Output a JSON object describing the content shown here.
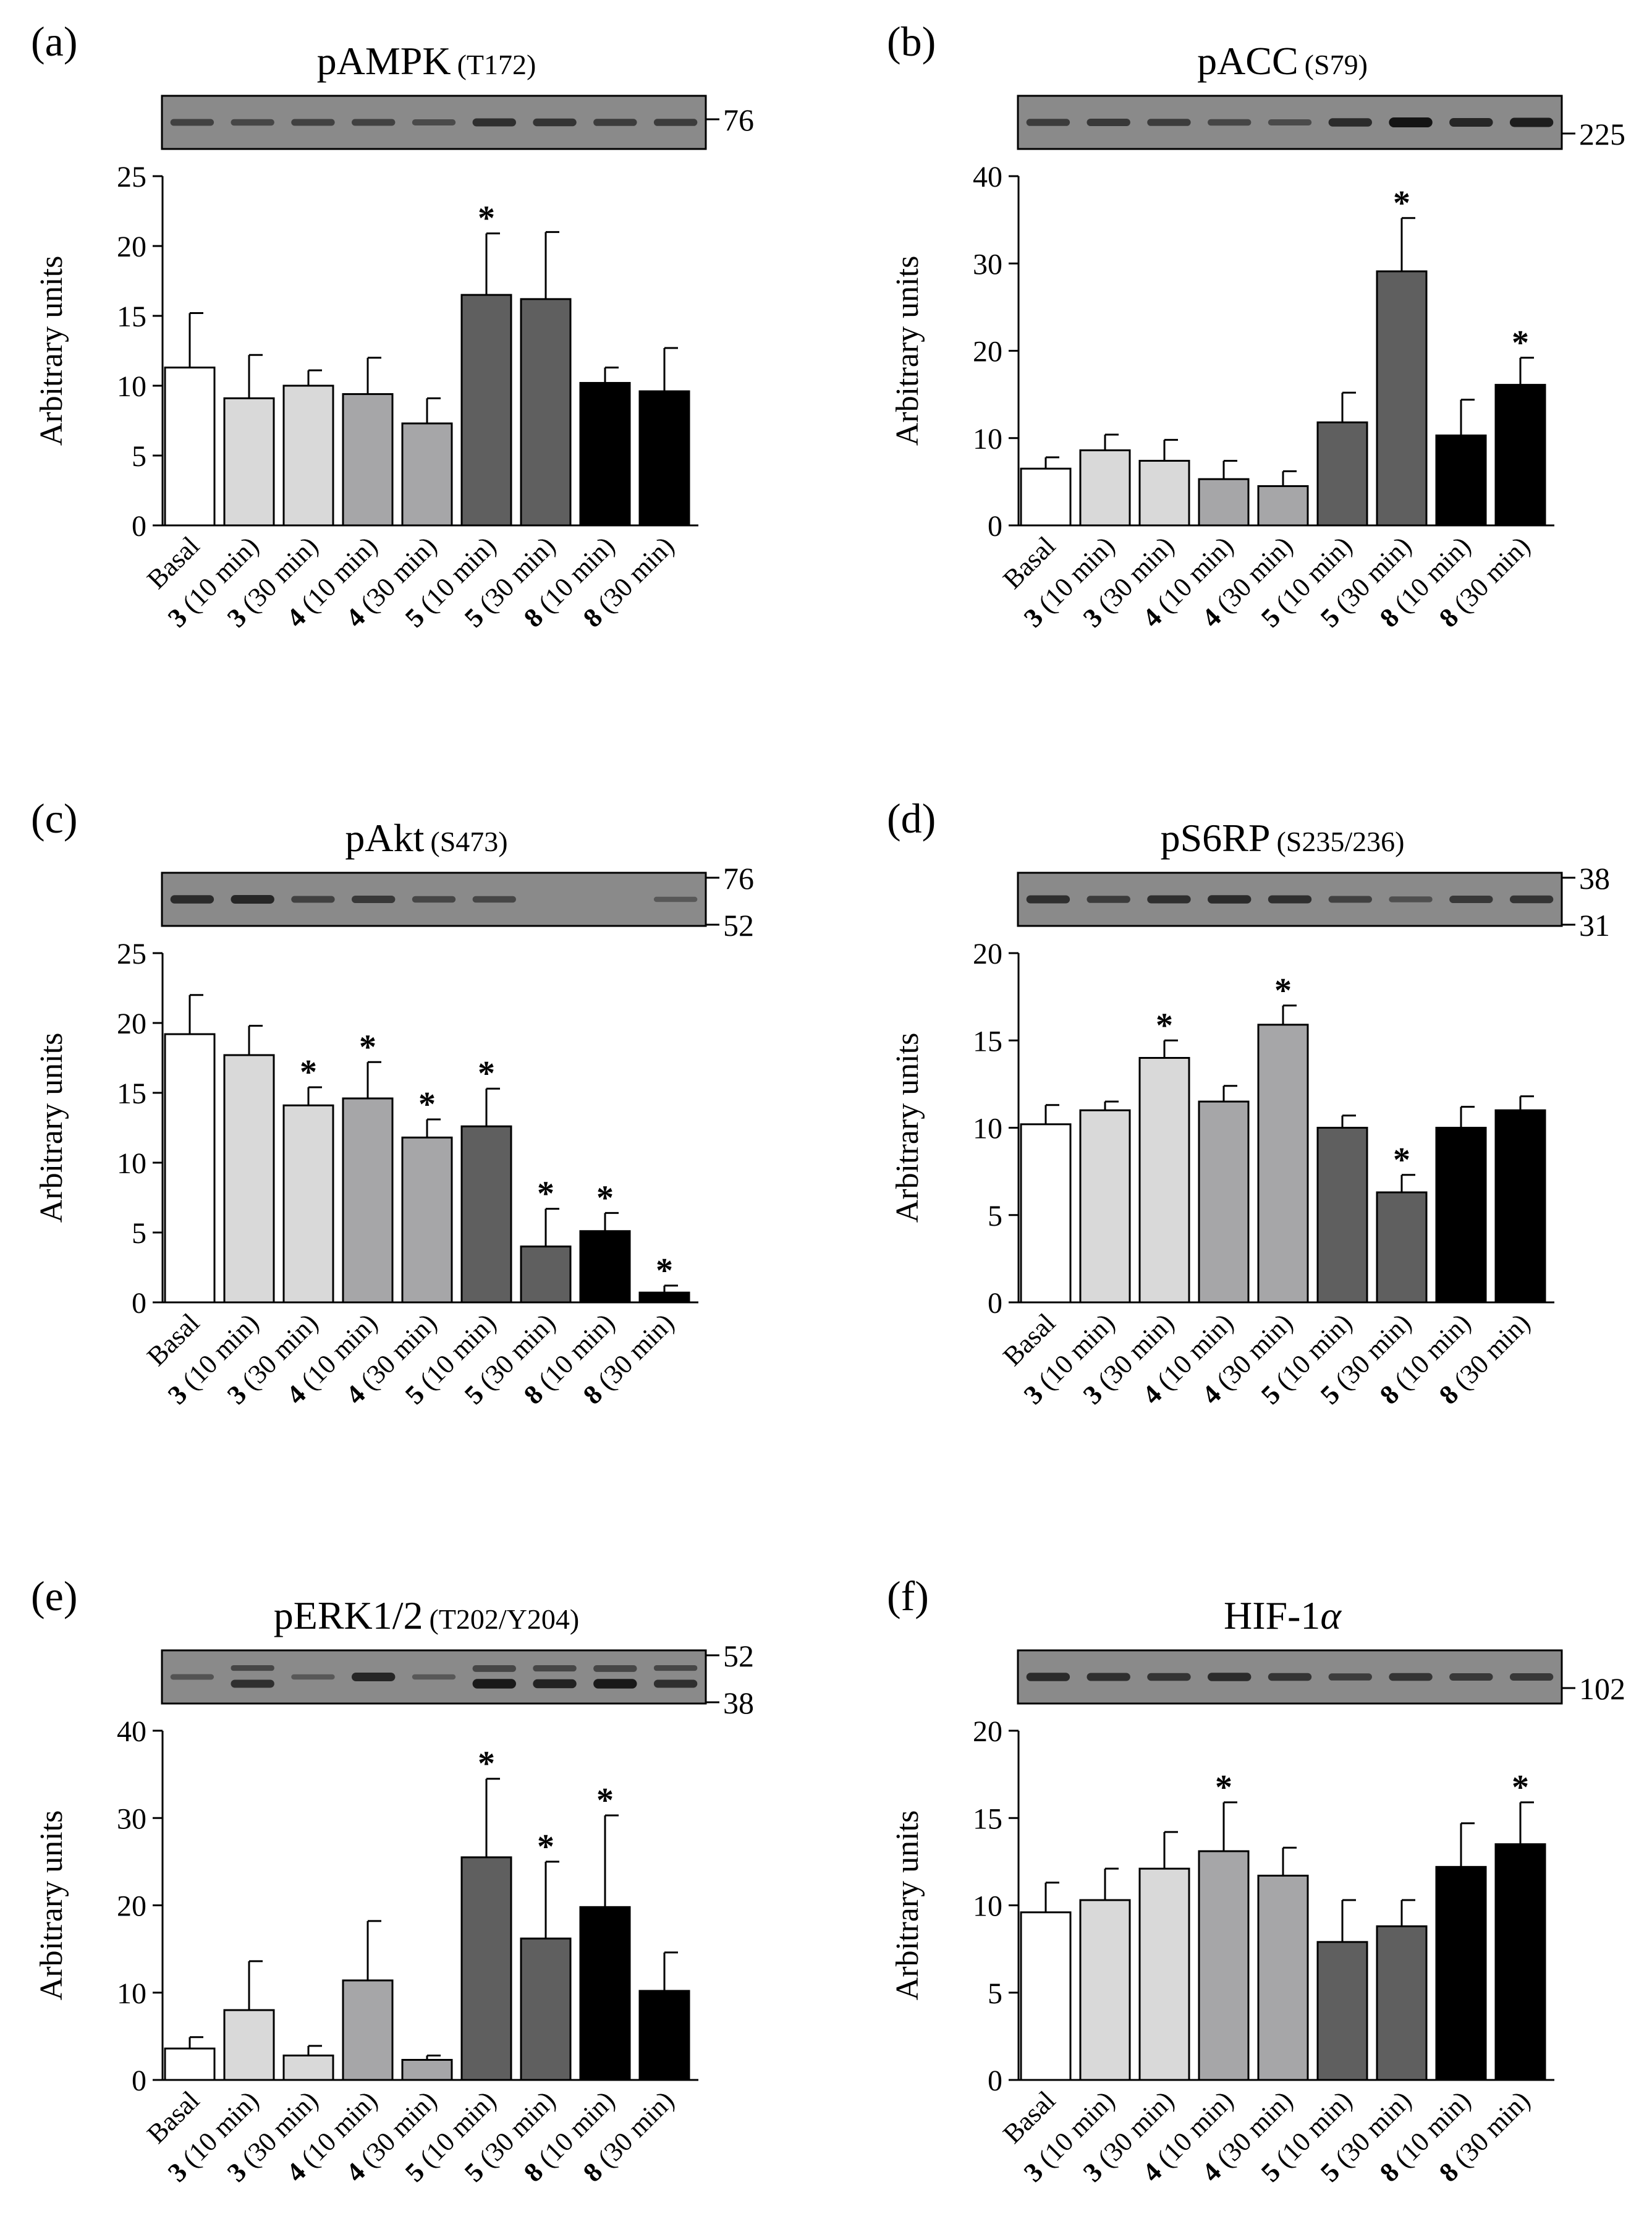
{
  "colors": {
    "basal": "#ffffff",
    "cmp3": "#d9d9d9",
    "cmp4": "#a6a6a8",
    "cmp5": "#5f5f5f",
    "cmp8": "#000000",
    "blot_bg": "#8a8a8a",
    "band": "#1e1e1e"
  },
  "chart_data": [
    {
      "type": "bar",
      "panel": "(a)",
      "title": "pAMPK",
      "title_site": "(T172)",
      "ylabel": "Arbitrary units",
      "ylim": [
        0,
        25
      ],
      "yticks": [
        0,
        5,
        10,
        15,
        20,
        25
      ],
      "categories": [
        {
          "num": "",
          "label": "Basal"
        },
        {
          "num": "3",
          "label": " (10 min)"
        },
        {
          "num": "3",
          "label": " (30 min)"
        },
        {
          "num": "4",
          "label": " (10 min)"
        },
        {
          "num": "4",
          "label": " (30 min)"
        },
        {
          "num": "5",
          "label": " (10 min)"
        },
        {
          "num": "5",
          "label": " (30 min)"
        },
        {
          "num": "8",
          "label": " (10 min)"
        },
        {
          "num": "8",
          "label": " (30 min)"
        }
      ],
      "values": [
        11.3,
        9.1,
        10.0,
        9.4,
        7.3,
        16.5,
        16.2,
        10.2,
        9.6
      ],
      "errors": [
        3.9,
        3.1,
        1.1,
        2.6,
        1.8,
        4.4,
        4.8,
        1.1,
        3.1
      ],
      "significant": [
        false,
        false,
        false,
        false,
        false,
        true,
        false,
        false,
        false
      ],
      "groups": [
        "basal",
        "cmp3",
        "cmp3",
        "cmp4",
        "cmp4",
        "cmp5",
        "cmp5",
        "cmp8",
        "cmp8"
      ],
      "blot": {
        "markers": [
          "76"
        ],
        "bands": [
          0.5,
          0.45,
          0.5,
          0.5,
          0.4,
          0.7,
          0.65,
          0.55,
          0.55
        ],
        "double": [
          false,
          false,
          false,
          false,
          false,
          false,
          false,
          false,
          false
        ]
      }
    },
    {
      "type": "bar",
      "panel": "(b)",
      "title": "pACC",
      "title_site": "(S79)",
      "ylabel": "Arbitrary units",
      "ylim": [
        0,
        40
      ],
      "yticks": [
        0,
        10,
        20,
        30,
        40
      ],
      "categories": [
        {
          "num": "",
          "label": "Basal"
        },
        {
          "num": "3",
          "label": " (10 min)"
        },
        {
          "num": "3",
          "label": " (30 min)"
        },
        {
          "num": "4",
          "label": " (10 min)"
        },
        {
          "num": "4",
          "label": " (30 min)"
        },
        {
          "num": "5",
          "label": " (10 min)"
        },
        {
          "num": "5",
          "label": " (30 min)"
        },
        {
          "num": "8",
          "label": " (10 min)"
        },
        {
          "num": "8",
          "label": " (30 min)"
        }
      ],
      "values": [
        6.5,
        8.6,
        7.4,
        5.3,
        4.5,
        11.8,
        29.1,
        10.3,
        16.1
      ],
      "errors": [
        1.3,
        1.8,
        2.4,
        2.1,
        1.7,
        3.4,
        6.1,
        4.1,
        3.1
      ],
      "significant": [
        false,
        false,
        false,
        false,
        false,
        false,
        true,
        false,
        true
      ],
      "groups": [
        "basal",
        "cmp3",
        "cmp3",
        "cmp4",
        "cmp4",
        "cmp5",
        "cmp5",
        "cmp8",
        "cmp8"
      ],
      "blot": {
        "markers": [
          "225"
        ],
        "bands": [
          0.55,
          0.6,
          0.55,
          0.45,
          0.4,
          0.75,
          1.0,
          0.8,
          0.9
        ],
        "double": [
          false,
          false,
          false,
          false,
          false,
          false,
          false,
          false,
          false
        ]
      }
    },
    {
      "type": "bar",
      "panel": "(c)",
      "title": "pAkt",
      "title_site": "(S473)",
      "ylabel": "Arbitrary units",
      "ylim": [
        0,
        25
      ],
      "yticks": [
        0,
        5,
        10,
        15,
        20,
        25
      ],
      "categories": [
        {
          "num": "",
          "label": "Basal"
        },
        {
          "num": "3",
          "label": " (10 min)"
        },
        {
          "num": "3",
          "label": " (30 min)"
        },
        {
          "num": "4",
          "label": " (10 min)"
        },
        {
          "num": "4",
          "label": " (30 min)"
        },
        {
          "num": "5",
          "label": " (10 min)"
        },
        {
          "num": "5",
          "label": " (30 min)"
        },
        {
          "num": "8",
          "label": " (10 min)"
        },
        {
          "num": "8",
          "label": " (30 min)"
        }
      ],
      "values": [
        19.2,
        17.7,
        14.1,
        14.6,
        11.8,
        12.6,
        4.0,
        5.1,
        0.7
      ],
      "errors": [
        2.8,
        2.1,
        1.3,
        2.6,
        1.3,
        2.7,
        2.7,
        1.3,
        0.5
      ],
      "significant": [
        false,
        false,
        true,
        true,
        true,
        true,
        true,
        true,
        true
      ],
      "groups": [
        "basal",
        "cmp3",
        "cmp3",
        "cmp4",
        "cmp4",
        "cmp5",
        "cmp5",
        "cmp8",
        "cmp8"
      ],
      "blot": {
        "markers": [
          "76",
          "52"
        ],
        "bands": [
          0.75,
          0.8,
          0.5,
          0.6,
          0.45,
          0.45,
          0.0,
          0.0,
          0.25
        ],
        "double": [
          false,
          false,
          false,
          false,
          false,
          false,
          false,
          false,
          false
        ]
      }
    },
    {
      "type": "bar",
      "panel": "(d)",
      "title": "pS6RP",
      "title_site": "(S235/236)",
      "ylabel": "Arbitrary units",
      "ylim": [
        0,
        20
      ],
      "yticks": [
        0,
        5,
        10,
        15,
        20
      ],
      "categories": [
        {
          "num": "",
          "label": "Basal"
        },
        {
          "num": "3",
          "label": " (10 min)"
        },
        {
          "num": "3",
          "label": " (30 min)"
        },
        {
          "num": "4",
          "label": " (10 min)"
        },
        {
          "num": "4",
          "label": " (30 min)"
        },
        {
          "num": "5",
          "label": " (10 min)"
        },
        {
          "num": "5",
          "label": " (30 min)"
        },
        {
          "num": "8",
          "label": " (10 min)"
        },
        {
          "num": "8",
          "label": " (30 min)"
        }
      ],
      "values": [
        10.2,
        11.0,
        14.0,
        11.5,
        15.9,
        10.0,
        6.3,
        10.0,
        11.0
      ],
      "errors": [
        1.1,
        0.5,
        1.0,
        0.9,
        1.1,
        0.7,
        1.0,
        1.2,
        0.8
      ],
      "significant": [
        false,
        false,
        true,
        false,
        true,
        false,
        true,
        false,
        false
      ],
      "groups": [
        "basal",
        "cmp3",
        "cmp3",
        "cmp4",
        "cmp4",
        "cmp5",
        "cmp5",
        "cmp8",
        "cmp8"
      ],
      "blot": {
        "markers": [
          "38",
          "31"
        ],
        "bands": [
          0.7,
          0.55,
          0.7,
          0.75,
          0.7,
          0.5,
          0.35,
          0.6,
          0.65
        ],
        "double": [
          false,
          false,
          false,
          false,
          false,
          false,
          false,
          false,
          false
        ]
      }
    },
    {
      "type": "bar",
      "panel": "(e)",
      "title": "pERK1/2",
      "title_site": "(T202/Y204)",
      "ylabel": "Arbitrary units",
      "ylim": [
        0,
        40
      ],
      "yticks": [
        0,
        10,
        20,
        30,
        40
      ],
      "categories": [
        {
          "num": "",
          "label": "Basal"
        },
        {
          "num": "3",
          "label": " (10 min)"
        },
        {
          "num": "3",
          "label": " (30 min)"
        },
        {
          "num": "4",
          "label": " (10 min)"
        },
        {
          "num": "4",
          "label": " (30 min)"
        },
        {
          "num": "5",
          "label": " (10 min)"
        },
        {
          "num": "5",
          "label": " (30 min)"
        },
        {
          "num": "8",
          "label": " (10 min)"
        },
        {
          "num": "8",
          "label": " (30 min)"
        }
      ],
      "values": [
        3.6,
        8.0,
        2.8,
        11.4,
        2.3,
        25.5,
        16.2,
        19.8,
        10.2
      ],
      "errors": [
        1.3,
        5.6,
        1.1,
        6.8,
        0.5,
        9.0,
        8.8,
        10.5,
        4.4
      ],
      "significant": [
        false,
        false,
        false,
        false,
        false,
        true,
        true,
        true,
        false
      ],
      "groups": [
        "basal",
        "cmp3",
        "cmp3",
        "cmp4",
        "cmp4",
        "cmp5",
        "cmp5",
        "cmp8",
        "cmp8"
      ],
      "blot": {
        "markers": [
          "52",
          "38"
        ],
        "bands": [
          0.3,
          0.7,
          0.25,
          0.8,
          0.25,
          0.95,
          0.85,
          0.95,
          0.7
        ],
        "double": [
          false,
          true,
          false,
          false,
          false,
          true,
          true,
          true,
          true
        ]
      }
    },
    {
      "type": "bar",
      "panel": "(f)",
      "title": "HIF-1",
      "title_site": "α",
      "ylabel": "Arbitrary units",
      "ylim": [
        0,
        20
      ],
      "yticks": [
        0,
        5,
        10,
        15,
        20
      ],
      "categories": [
        {
          "num": "",
          "label": "Basal"
        },
        {
          "num": "3",
          "label": " (10 min)"
        },
        {
          "num": "3",
          "label": " (30 min)"
        },
        {
          "num": "4",
          "label": " (10 min)"
        },
        {
          "num": "4",
          "label": " (30 min)"
        },
        {
          "num": "5",
          "label": " (10 min)"
        },
        {
          "num": "5",
          "label": " (30 min)"
        },
        {
          "num": "8",
          "label": " (10 min)"
        },
        {
          "num": "8",
          "label": " (30 min)"
        }
      ],
      "values": [
        9.6,
        10.3,
        12.1,
        13.1,
        11.7,
        7.9,
        8.8,
        12.2,
        13.5
      ],
      "errors": [
        1.7,
        1.8,
        2.1,
        2.8,
        1.6,
        2.4,
        1.5,
        2.5,
        2.4
      ],
      "significant": [
        false,
        false,
        false,
        true,
        false,
        false,
        false,
        false,
        true
      ],
      "groups": [
        "basal",
        "cmp3",
        "cmp3",
        "cmp4",
        "cmp4",
        "cmp5",
        "cmp5",
        "cmp8",
        "cmp8"
      ],
      "blot": {
        "markers": [
          "102"
        ],
        "bands": [
          0.75,
          0.7,
          0.65,
          0.75,
          0.65,
          0.55,
          0.65,
          0.6,
          0.6
        ],
        "double": [
          false,
          false,
          false,
          false,
          false,
          false,
          false,
          false,
          false
        ]
      }
    }
  ]
}
